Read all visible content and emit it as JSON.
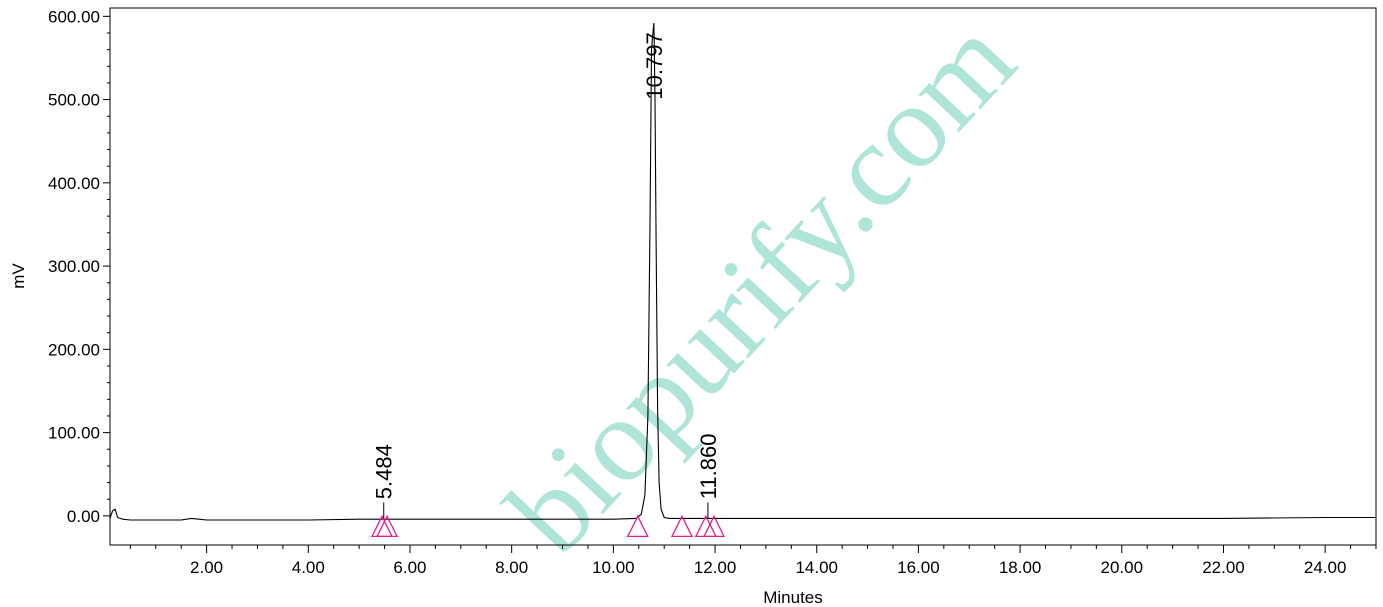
{
  "chart_data": {
    "type": "line",
    "xlabel": "Minutes",
    "ylabel": "mV",
    "xlim": [
      0.1,
      25.0
    ],
    "ylim": [
      -35,
      610
    ],
    "x_ticks": [
      2,
      4,
      6,
      8,
      10,
      12,
      14,
      16,
      18,
      20,
      22,
      24
    ],
    "x_tick_labels": [
      "2.00",
      "4.00",
      "6.00",
      "8.00",
      "10.00",
      "12.00",
      "14.00",
      "16.00",
      "18.00",
      "20.00",
      "22.00",
      "24.00"
    ],
    "y_ticks": [
      0,
      100,
      200,
      300,
      400,
      500,
      600
    ],
    "y_tick_labels": [
      "0.00",
      "100.00",
      "200.00",
      "300.00",
      "400.00",
      "500.00",
      "600.00"
    ],
    "series": [
      {
        "x": [
          0.1,
          0.15,
          0.2,
          0.25,
          0.35,
          0.5,
          1.0,
          1.5,
          1.6,
          1.7,
          1.85,
          2.0,
          3.0,
          4.0,
          5.0,
          5.484,
          6.0,
          8.0,
          10.0,
          10.45,
          10.55,
          10.62,
          10.68,
          10.72,
          10.75,
          10.77,
          10.797,
          10.82,
          10.84,
          10.87,
          10.9,
          10.94,
          11.0,
          11.1,
          11.5,
          11.86,
          12.0,
          14.0,
          16.0,
          18.0,
          20.0,
          22.0,
          24.0,
          25.0
        ],
        "y": [
          -3,
          6,
          8,
          -2,
          -4,
          -5,
          -5,
          -5,
          -4,
          -3,
          -4,
          -5,
          -5,
          -5,
          -4,
          -4,
          -4,
          -4,
          -4,
          -3,
          2,
          25,
          120,
          350,
          560,
          575,
          592,
          500,
          330,
          130,
          40,
          8,
          -2,
          -3,
          -3,
          -3,
          -3,
          -3,
          -3,
          -3,
          -3,
          -3,
          -2,
          -2
        ]
      }
    ],
    "peaks": [
      {
        "rt": 5.484,
        "label": "5.484"
      },
      {
        "rt": 10.797,
        "label": "10.797"
      },
      {
        "rt": 11.86,
        "label": "11.860"
      }
    ],
    "integration_markers": [
      5.45,
      5.55,
      10.48,
      11.35,
      11.82,
      11.98
    ],
    "colors": {
      "trace": "#000000",
      "marker": "#e0208c",
      "watermark": "#1bb38e"
    },
    "watermark_text": "biopurify.com",
    "grid": false
  }
}
